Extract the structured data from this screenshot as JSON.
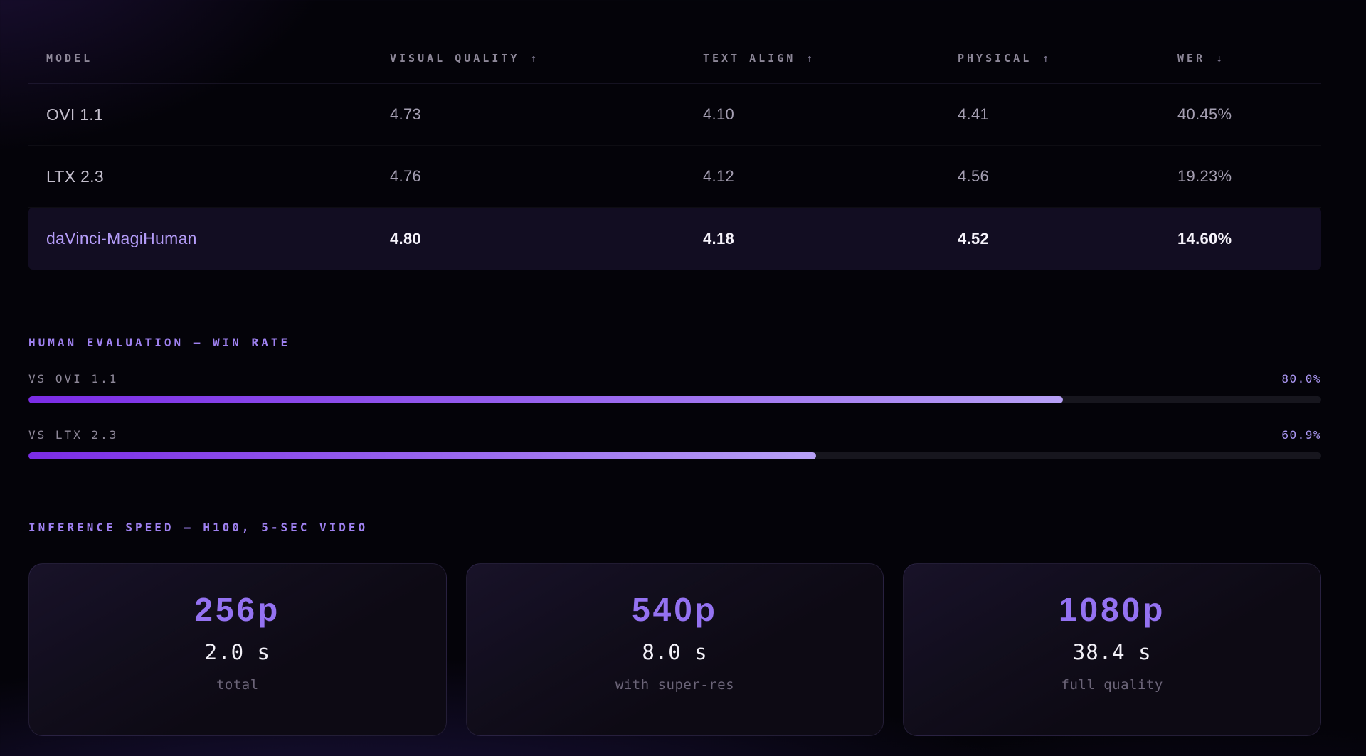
{
  "table": {
    "columns": [
      {
        "label": "MODEL",
        "arrow": ""
      },
      {
        "label": "VISUAL QUALITY",
        "arrow": "↑"
      },
      {
        "label": "TEXT ALIGN",
        "arrow": "↑"
      },
      {
        "label": "PHYSICAL",
        "arrow": "↑"
      },
      {
        "label": "WER",
        "arrow": "↓"
      }
    ],
    "rows": [
      {
        "model": "OVI 1.1",
        "visual_quality": "4.73",
        "text_align": "4.10",
        "physical": "4.41",
        "wer": "40.45%"
      },
      {
        "model": "LTX 2.3",
        "visual_quality": "4.76",
        "text_align": "4.12",
        "physical": "4.56",
        "wer": "19.23%"
      },
      {
        "model": "daVinci-MagiHuman",
        "visual_quality": "4.80",
        "text_align": "4.18",
        "physical": "4.52",
        "wer": "14.60%"
      }
    ]
  },
  "human_eval": {
    "title": "HUMAN EVALUATION — WIN RATE",
    "bars": [
      {
        "label": "VS OVI 1.1",
        "value_label": "80.0%",
        "percent": 80.0
      },
      {
        "label": "VS LTX 2.3",
        "value_label": "60.9%",
        "percent": 60.9
      }
    ]
  },
  "inference": {
    "title": "INFERENCE SPEED — H100, 5-SEC VIDEO",
    "cards": [
      {
        "resolution": "256p",
        "time": "2.0 s",
        "caption": "total"
      },
      {
        "resolution": "540p",
        "time": "8.0 s",
        "caption": "with super-res"
      },
      {
        "resolution": "1080p",
        "time": "38.4 s",
        "caption": "full quality"
      }
    ]
  },
  "chart_data": {
    "type": "bar",
    "orientation": "horizontal",
    "title": "HUMAN EVALUATION — WIN RATE",
    "categories": [
      "VS OVI 1.1",
      "VS LTX 2.3"
    ],
    "values": [
      80.0,
      60.9
    ],
    "unit": "%",
    "xlim": [
      0,
      100
    ],
    "grid": false,
    "legend": false
  },
  "colors": {
    "accent_purple": "#9f81f0",
    "highlight_text": "#b49cf8",
    "bar_gradient_start": "#7b2ce6",
    "bar_gradient_end": "#b7a0f6",
    "card_title": "#9472f1",
    "row_highlight_bg": "#120d22",
    "page_bg": "#040309"
  }
}
